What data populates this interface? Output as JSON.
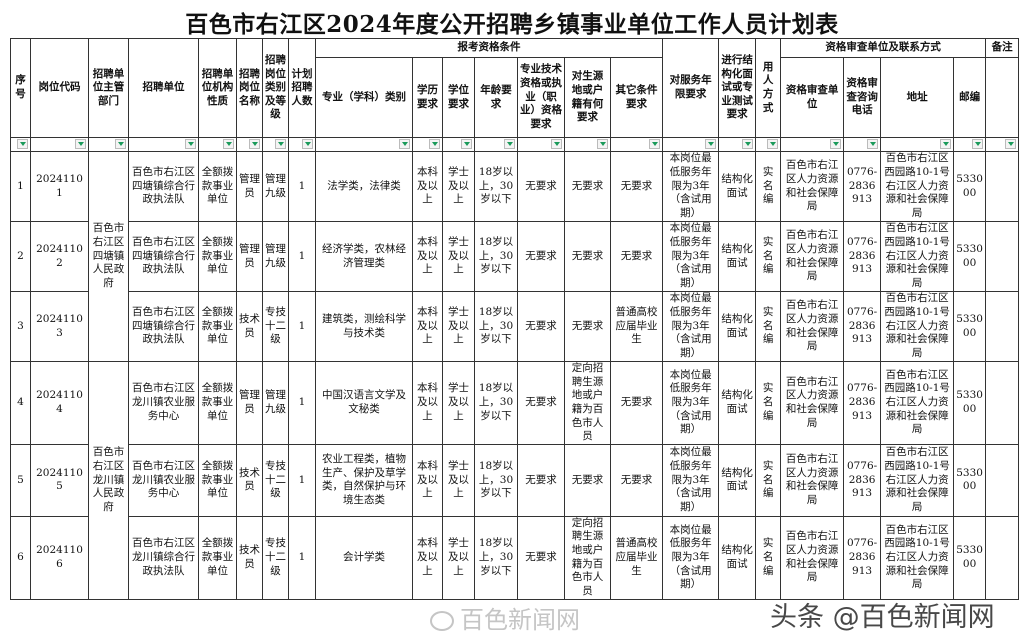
{
  "title": "百色市右江区2024年度公开招聘乡镇事业单位工作人员计划表",
  "headers": {
    "seq": "序号",
    "code": "岗位代码",
    "dept": "招聘单位主管部门",
    "unit": "招聘单位",
    "nature": "招聘单位机构性质",
    "post": "招聘岗位名称",
    "grade": "招聘岗位类别及等级",
    "count": "计划招聘人数",
    "conditions": "报考资格条件",
    "major": "专业（学科）类别",
    "edu": "学历要求",
    "degree": "学位要求",
    "age": "年龄要求",
    "qual": "专业技术资格或执业（职业）资格要求",
    "origin": "对生源地或户籍有何要求",
    "other": "其它条件要求",
    "service": "对服务年限要求",
    "interview": "进行结构化面试或专业测试要求",
    "hire": "用人方式",
    "review": "资格审查单位及联系方式",
    "review_unit": "资格审查单位",
    "phone": "资格审查咨询电话",
    "address": "地址",
    "zip": "邮编",
    "remark": "备注"
  },
  "departments": [
    "百色市右江区四塘镇人民政府",
    "百色市右江区龙川镇人民政府"
  ],
  "rows": [
    {
      "seq": "1",
      "code": "20241101",
      "unit": "百色市右江区四塘镇综合行政执法队",
      "nature": "全额拨款事业单位",
      "post": "管理员",
      "grade": "管理九级",
      "count": "1",
      "major": "法学类，法律类",
      "edu": "本科及以上",
      "degree": "学士及以上",
      "age": "18岁以上，30岁以下",
      "qual": "无要求",
      "origin": "无要求",
      "other": "无要求",
      "service": "本岗位最低服务年限为3年（含试用期）",
      "interview": "结构化面试",
      "hire": "实名编",
      "review_unit": "百色市右江区人力资源和社会保障局",
      "phone": "0776-2836913",
      "address": "百色市右江区西园路10-1号右江区人力资源和社会保障局",
      "zip": "533000",
      "remark": ""
    },
    {
      "seq": "2",
      "code": "20241102",
      "unit": "百色市右江区四塘镇综合行政执法队",
      "nature": "全额拨款事业单位",
      "post": "管理员",
      "grade": "管理九级",
      "count": "1",
      "major": "经济学类，农林经济管理类",
      "edu": "本科及以上",
      "degree": "学士及以上",
      "age": "18岁以上，30岁以下",
      "qual": "无要求",
      "origin": "无要求",
      "other": "无要求",
      "service": "本岗位最低服务年限为3年（含试用期）",
      "interview": "结构化面试",
      "hire": "实名编",
      "review_unit": "百色市右江区人力资源和社会保障局",
      "phone": "0776-2836913",
      "address": "百色市右江区西园路10-1号右江区人力资源和社会保障局",
      "zip": "533000",
      "remark": ""
    },
    {
      "seq": "3",
      "code": "20241103",
      "unit": "百色市右江区四塘镇综合行政执法队",
      "nature": "全额拨款事业单位",
      "post": "技术员",
      "grade": "专技十二级",
      "count": "1",
      "major": "建筑类，测绘科学与技术类",
      "edu": "本科及以上",
      "degree": "学士及以上",
      "age": "18岁以上，30岁以下",
      "qual": "无要求",
      "origin": "无要求",
      "other": "普通高校应届毕业生",
      "service": "本岗位最低服务年限为3年（含试用期）",
      "interview": "结构化面试",
      "hire": "实名编",
      "review_unit": "百色市右江区人力资源和社会保障局",
      "phone": "0776-2836913",
      "address": "百色市右江区西园路10-1号右江区人力资源和社会保障局",
      "zip": "533000",
      "remark": ""
    },
    {
      "seq": "4",
      "code": "20241104",
      "unit": "百色市右江区龙川镇农业服务中心",
      "nature": "全额拨款事业单位",
      "post": "管理员",
      "grade": "管理九级",
      "count": "1",
      "major": "中国汉语言文学及文秘类",
      "edu": "本科及以上",
      "degree": "学士及以上",
      "age": "18岁以上，30岁以下",
      "qual": "无要求",
      "origin": "定向招聘生源地或户籍为百色市人员",
      "other": "无要求",
      "service": "本岗位最低服务年限为3年（含试用期）",
      "interview": "结构化面试",
      "hire": "实名编",
      "review_unit": "百色市右江区人力资源和社会保障局",
      "phone": "0776-2836913",
      "address": "百色市右江区西园路10-1号右江区人力资源和社会保障局",
      "zip": "533000",
      "remark": ""
    },
    {
      "seq": "5",
      "code": "20241105",
      "unit": "百色市右江区龙川镇农业服务中心",
      "nature": "全额拨款事业单位",
      "post": "技术员",
      "grade": "专技十二级",
      "count": "1",
      "major": "农业工程类，植物生产、保护及草学类，自然保护与环境生态类",
      "edu": "本科及以上",
      "degree": "学士及以上",
      "age": "18岁以上，30岁以下",
      "qual": "无要求",
      "origin": "无要求",
      "other": "无要求",
      "service": "本岗位最低服务年限为3年（含试用期）",
      "interview": "结构化面试",
      "hire": "实名编",
      "review_unit": "百色市右江区人力资源和社会保障局",
      "phone": "0776-2836913",
      "address": "百色市右江区西园路10-1号右江区人力资源和社会保障局",
      "zip": "533000",
      "remark": ""
    },
    {
      "seq": "6",
      "code": "20241106",
      "unit": "百色市右江区龙川镇综合行政执法队",
      "nature": "全额拨款事业单位",
      "post": "技术员",
      "grade": "专技十二级",
      "count": "1",
      "major": "会计学类",
      "edu": "本科及以上",
      "degree": "学士及以上",
      "age": "18岁以上，30岁以下",
      "qual": "无要求",
      "origin": "定向招聘生源地或户籍为百色市人员",
      "other": "普通高校应届毕业生",
      "service": "本岗位最低服务年限为3年（含试用期）",
      "interview": "结构化面试",
      "hire": "实名编",
      "review_unit": "百色市右江区人力资源和社会保障局",
      "phone": "0776-2836913",
      "address": "百色市右江区西园路10-1号右江区人力资源和社会保障局",
      "zip": "533000",
      "remark": ""
    }
  ],
  "watermarks": {
    "center": "百色新闻网",
    "right": "头条 @百色新闻网"
  },
  "colors": {
    "filter_arrow": "#1a9a5a",
    "border": "#333333"
  }
}
